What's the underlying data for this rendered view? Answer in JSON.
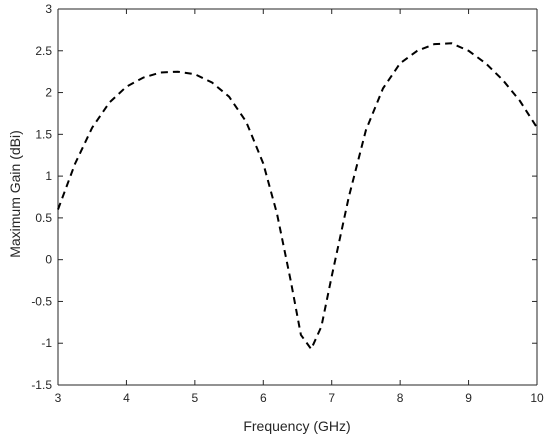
{
  "chart_data": {
    "type": "line",
    "title": "",
    "xlabel": "Frequency   (GHz)",
    "ylabel": "Maximum Gain   (dBi)",
    "xlim": [
      3,
      10
    ],
    "ylim": [
      -1.5,
      3
    ],
    "xticks": [
      3,
      4,
      5,
      6,
      7,
      8,
      9,
      10
    ],
    "yticks": [
      -1.5,
      -1,
      -0.5,
      0,
      0.5,
      1,
      1.5,
      2,
      2.5,
      3
    ],
    "xtick_labels": [
      "3",
      "4",
      "5",
      "6",
      "7",
      "8",
      "9",
      "10"
    ],
    "ytick_labels": [
      "-1.5",
      "-1",
      "-0.5",
      "0",
      "0.5",
      "1",
      "1.5",
      "2",
      "2.5",
      "3"
    ],
    "grid": false,
    "legend": "none",
    "series": [
      {
        "line_style": "dashed",
        "color": "#000000",
        "x": [
          3.0,
          3.25,
          3.5,
          3.75,
          4.0,
          4.25,
          4.5,
          4.75,
          5.0,
          5.25,
          5.5,
          5.75,
          6.0,
          6.2,
          6.4,
          6.55,
          6.7,
          6.85,
          7.0,
          7.25,
          7.5,
          7.75,
          8.0,
          8.25,
          8.5,
          8.75,
          9.0,
          9.25,
          9.5,
          9.75,
          10.0
        ],
        "y": [
          0.6,
          1.15,
          1.58,
          1.88,
          2.07,
          2.18,
          2.24,
          2.25,
          2.22,
          2.12,
          1.95,
          1.65,
          1.15,
          0.55,
          -0.25,
          -0.9,
          -1.07,
          -0.8,
          -0.2,
          0.75,
          1.55,
          2.05,
          2.35,
          2.5,
          2.58,
          2.59,
          2.5,
          2.35,
          2.15,
          1.9,
          1.58
        ]
      }
    ]
  }
}
